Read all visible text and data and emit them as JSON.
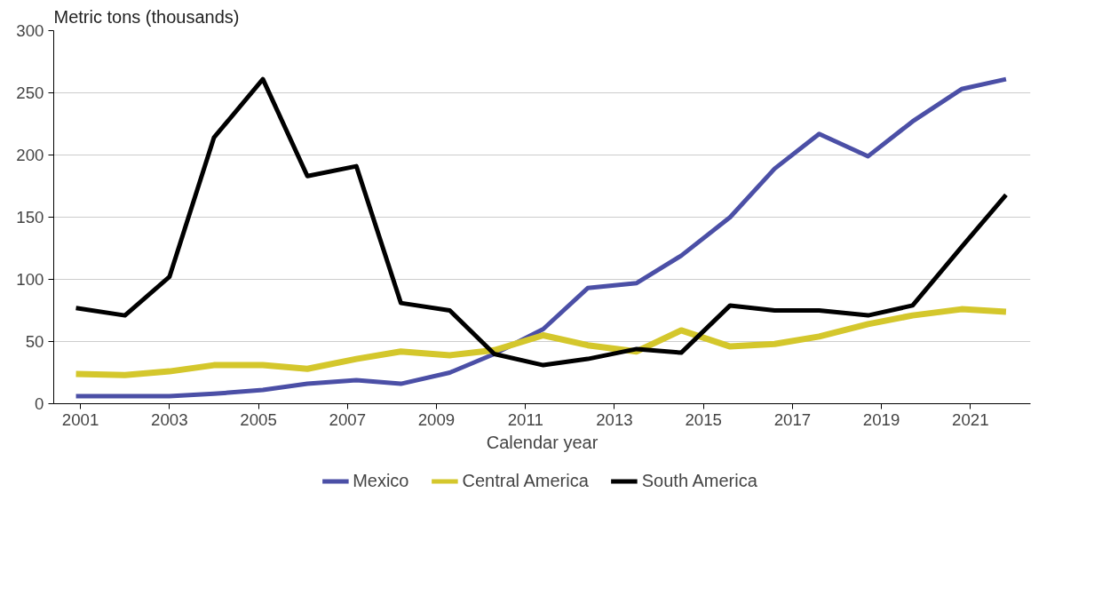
{
  "chart_data": {
    "type": "line",
    "ylabel": "Metric tons (thousands)",
    "xlabel": "Calendar year",
    "x": [
      2000.9,
      2002.0,
      2003.0,
      2004.0,
      2005.1,
      2006.1,
      2007.2,
      2008.2,
      2009.3,
      2010.3,
      2011.4,
      2012.4,
      2013.5,
      2014.5,
      2015.6,
      2016.6,
      2017.6,
      2018.7,
      2019.7,
      2020.8,
      2021.8
    ],
    "series": [
      {
        "name": "Mexico",
        "color": "#4b4fa6",
        "values": [
          6,
          6,
          6,
          8,
          11,
          16,
          19,
          16,
          25,
          40,
          60,
          93,
          97,
          119,
          150,
          189,
          217,
          199,
          227,
          253,
          261
        ]
      },
      {
        "name": "Central America",
        "color": "#d4c72c",
        "values": [
          24,
          23,
          26,
          31,
          31,
          28,
          36,
          42,
          39,
          43,
          55,
          47,
          42,
          59,
          46,
          48,
          54,
          64,
          71,
          76,
          74
        ]
      },
      {
        "name": "South America",
        "color": "#000000",
        "values": [
          77,
          71,
          102,
          214,
          261,
          183,
          191,
          81,
          75,
          40,
          31,
          36,
          44,
          41,
          79,
          75,
          75,
          71,
          79,
          126,
          168
        ]
      }
    ],
    "xlim": [
      2000.4,
      2022.35
    ],
    "ylim": [
      0,
      300
    ],
    "xticks": [
      2001,
      2003,
      2005,
      2007,
      2009,
      2011,
      2013,
      2015,
      2017,
      2019,
      2021
    ],
    "yticks": [
      0,
      50,
      100,
      150,
      200,
      250,
      300
    ],
    "grid": "y",
    "legend": "bottom",
    "marker": "none",
    "line_style": "solid"
  }
}
